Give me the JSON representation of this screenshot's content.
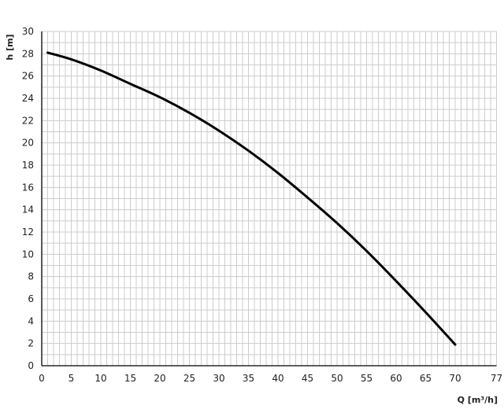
{
  "chart_data": {
    "type": "line",
    "title": "",
    "xlabel": "Q [m³/h]",
    "ylabel": "h [m]",
    "xlim": [
      0,
      77
    ],
    "ylim": [
      0,
      30
    ],
    "x_ticks": [
      0,
      5,
      10,
      15,
      20,
      25,
      30,
      35,
      40,
      45,
      50,
      55,
      60,
      65,
      70,
      77
    ],
    "y_ticks": [
      0,
      2,
      4,
      6,
      8,
      10,
      12,
      14,
      16,
      18,
      20,
      22,
      24,
      26,
      28,
      30
    ],
    "grid": true,
    "grid_minor_step": {
      "x": 1,
      "y": 1
    },
    "series": [
      {
        "color": "#000000",
        "x": [
          1,
          5,
          10,
          15,
          20,
          25,
          30,
          35,
          40,
          45,
          50,
          55,
          60,
          65,
          70
        ],
        "y": [
          28.1,
          27.5,
          26.5,
          25.3,
          24.1,
          22.7,
          21.1,
          19.3,
          17.3,
          15.1,
          12.8,
          10.3,
          7.6,
          4.8,
          1.9
        ]
      }
    ],
    "colors": {
      "grid": "#cccccc",
      "axis": "#000000",
      "curve": "#000000"
    }
  }
}
